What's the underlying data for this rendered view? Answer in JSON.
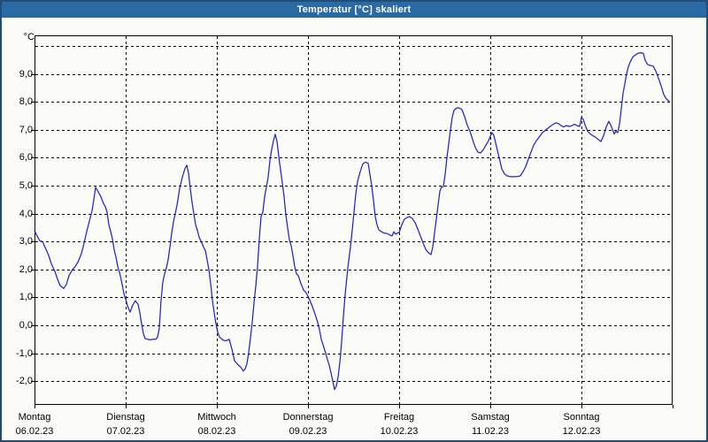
{
  "window": {
    "title": "Temperatur [°C] skaliert",
    "titlebar_color": "#2a69a2",
    "frame_color": "#1d4e79",
    "background_color": "#fbfcf7"
  },
  "chart_data": {
    "type": "line",
    "title": "Temperatur [°C] skaliert",
    "grid": {
      "style": "dashed",
      "color": "#000000",
      "visible": true
    },
    "legend": "none",
    "x_axis": {
      "unit": "days",
      "range_days": [
        0,
        7
      ],
      "gridlines_at_day_boundaries": true,
      "day_labels": [
        {
          "name": "Montag",
          "date": "06.02.23"
        },
        {
          "name": "Dienstag",
          "date": "07.02.23"
        },
        {
          "name": "Mittwoch",
          "date": "08.02.23"
        },
        {
          "name": "Donnerstag",
          "date": "09.02.23"
        },
        {
          "name": "Freitag",
          "date": "10.02.23"
        },
        {
          "name": "Samstag",
          "date": "11.02.23"
        },
        {
          "name": "Sonntag",
          "date": "12.02.23"
        }
      ]
    },
    "y_axis": {
      "unit_label": "°C",
      "min": -2.85,
      "max": 10.38,
      "gridline_values": [
        10,
        9,
        8,
        7,
        6,
        5,
        4,
        3,
        2,
        1,
        0,
        -1,
        -2
      ],
      "tick_labels": [
        {
          "value": 9,
          "label": "9,0"
        },
        {
          "value": 8,
          "label": "8,0"
        },
        {
          "value": 7,
          "label": "7,0"
        },
        {
          "value": 6,
          "label": "6,0"
        },
        {
          "value": 5,
          "label": "5,0"
        },
        {
          "value": 4,
          "label": "4,0"
        },
        {
          "value": 3,
          "label": "3,0"
        },
        {
          "value": 2,
          "label": "2,0"
        },
        {
          "value": 1,
          "label": "1,0"
        },
        {
          "value": 0,
          "label": "0,0"
        },
        {
          "value": -1,
          "label": "-1,0"
        },
        {
          "value": -2,
          "label": "-2,0"
        }
      ]
    },
    "series": [
      {
        "name": "Temperatur",
        "color": "#2323c8",
        "points": [
          [
            0.0,
            3.38
          ],
          [
            0.029,
            3.2
          ],
          [
            0.058,
            3.02
          ],
          [
            0.087,
            3.0
          ],
          [
            0.126,
            2.72
          ],
          [
            0.155,
            2.5
          ],
          [
            0.184,
            2.2
          ],
          [
            0.223,
            1.93
          ],
          [
            0.252,
            1.65
          ],
          [
            0.282,
            1.42
          ],
          [
            0.32,
            1.32
          ],
          [
            0.35,
            1.46
          ],
          [
            0.379,
            1.78
          ],
          [
            0.417,
            2.0
          ],
          [
            0.447,
            2.1
          ],
          [
            0.476,
            2.26
          ],
          [
            0.515,
            2.57
          ],
          [
            0.544,
            2.94
          ],
          [
            0.573,
            3.36
          ],
          [
            0.602,
            3.73
          ],
          [
            0.631,
            4.1
          ],
          [
            0.65,
            4.5
          ],
          [
            0.67,
            4.94
          ],
          [
            0.699,
            4.78
          ],
          [
            0.728,
            4.6
          ],
          [
            0.757,
            4.35
          ],
          [
            0.777,
            4.25
          ],
          [
            0.796,
            4.05
          ],
          [
            0.816,
            3.6
          ],
          [
            0.835,
            3.36
          ],
          [
            0.854,
            3.1
          ],
          [
            0.874,
            2.7
          ],
          [
            0.893,
            2.45
          ],
          [
            0.913,
            2.1
          ],
          [
            0.932,
            1.9
          ],
          [
            0.951,
            1.62
          ],
          [
            0.971,
            1.3
          ],
          [
            0.99,
            1.0
          ],
          [
            1.0,
            0.94
          ],
          [
            1.019,
            0.7
          ],
          [
            1.049,
            0.47
          ],
          [
            1.078,
            0.73
          ],
          [
            1.107,
            0.88
          ],
          [
            1.136,
            0.75
          ],
          [
            1.155,
            0.45
          ],
          [
            1.175,
            0.05
          ],
          [
            1.194,
            -0.3
          ],
          [
            1.214,
            -0.48
          ],
          [
            1.243,
            -0.5
          ],
          [
            1.272,
            -0.52
          ],
          [
            1.301,
            -0.5
          ],
          [
            1.33,
            -0.5
          ],
          [
            1.35,
            -0.42
          ],
          [
            1.369,
            -0.1
          ],
          [
            1.388,
            0.9
          ],
          [
            1.408,
            1.55
          ],
          [
            1.427,
            1.85
          ],
          [
            1.447,
            2.05
          ],
          [
            1.466,
            2.35
          ],
          [
            1.485,
            2.8
          ],
          [
            1.505,
            3.3
          ],
          [
            1.524,
            3.7
          ],
          [
            1.544,
            4.0
          ],
          [
            1.563,
            4.3
          ],
          [
            1.592,
            4.9
          ],
          [
            1.621,
            5.3
          ],
          [
            1.65,
            5.6
          ],
          [
            1.67,
            5.73
          ],
          [
            1.689,
            5.45
          ],
          [
            1.709,
            4.9
          ],
          [
            1.728,
            4.4
          ],
          [
            1.748,
            4.0
          ],
          [
            1.767,
            3.6
          ],
          [
            1.786,
            3.4
          ],
          [
            1.806,
            3.15
          ],
          [
            1.835,
            2.95
          ],
          [
            1.854,
            2.8
          ],
          [
            1.874,
            2.68
          ],
          [
            1.893,
            2.35
          ],
          [
            1.913,
            2.0
          ],
          [
            1.932,
            1.5
          ],
          [
            1.951,
            0.9
          ],
          [
            1.971,
            0.45
          ],
          [
            1.99,
            0.05
          ],
          [
            2.01,
            -0.25
          ],
          [
            2.029,
            -0.42
          ],
          [
            2.049,
            -0.48
          ],
          [
            2.078,
            -0.55
          ],
          [
            2.107,
            -0.55
          ],
          [
            2.136,
            -0.5
          ],
          [
            2.165,
            -0.85
          ],
          [
            2.194,
            -1.27
          ],
          [
            2.223,
            -1.38
          ],
          [
            2.243,
            -1.45
          ],
          [
            2.262,
            -1.5
          ],
          [
            2.291,
            -1.64
          ],
          [
            2.311,
            -1.56
          ],
          [
            2.33,
            -1.38
          ],
          [
            2.35,
            -0.95
          ],
          [
            2.369,
            -0.45
          ],
          [
            2.388,
            0.1
          ],
          [
            2.408,
            0.8
          ],
          [
            2.427,
            1.4
          ],
          [
            2.447,
            2.1
          ],
          [
            2.466,
            3.1
          ],
          [
            2.485,
            3.9
          ],
          [
            2.505,
            4.05
          ],
          [
            2.524,
            4.6
          ],
          [
            2.544,
            4.95
          ],
          [
            2.563,
            5.3
          ],
          [
            2.583,
            5.9
          ],
          [
            2.602,
            6.3
          ],
          [
            2.621,
            6.6
          ],
          [
            2.641,
            6.84
          ],
          [
            2.66,
            6.58
          ],
          [
            2.68,
            6.05
          ],
          [
            2.699,
            5.57
          ],
          [
            2.718,
            5.1
          ],
          [
            2.738,
            4.6
          ],
          [
            2.757,
            3.95
          ],
          [
            2.777,
            3.5
          ],
          [
            2.796,
            3.05
          ],
          [
            2.816,
            2.85
          ],
          [
            2.835,
            2.5
          ],
          [
            2.854,
            2.1
          ],
          [
            2.874,
            1.84
          ],
          [
            2.893,
            1.78
          ],
          [
            2.922,
            1.5
          ],
          [
            2.951,
            1.26
          ],
          [
            2.971,
            1.2
          ],
          [
            2.99,
            1.1
          ],
          [
            3.019,
            0.9
          ],
          [
            3.049,
            0.67
          ],
          [
            3.078,
            0.4
          ],
          [
            3.107,
            0.1
          ],
          [
            3.126,
            -0.16
          ],
          [
            3.146,
            -0.5
          ],
          [
            3.175,
            -0.8
          ],
          [
            3.194,
            -1.0
          ],
          [
            3.214,
            -1.23
          ],
          [
            3.233,
            -1.43
          ],
          [
            3.252,
            -1.7
          ],
          [
            3.272,
            -2.0
          ],
          [
            3.291,
            -2.3
          ],
          [
            3.311,
            -2.18
          ],
          [
            3.33,
            -1.86
          ],
          [
            3.35,
            -1.3
          ],
          [
            3.369,
            -0.6
          ],
          [
            3.388,
            0.3
          ],
          [
            3.408,
            1.1
          ],
          [
            3.437,
            2.05
          ],
          [
            3.466,
            2.8
          ],
          [
            3.485,
            3.4
          ],
          [
            3.505,
            4.05
          ],
          [
            3.524,
            4.7
          ],
          [
            3.544,
            5.15
          ],
          [
            3.573,
            5.5
          ],
          [
            3.602,
            5.78
          ],
          [
            3.631,
            5.84
          ],
          [
            3.66,
            5.8
          ],
          [
            3.68,
            5.4
          ],
          [
            3.699,
            5.0
          ],
          [
            3.718,
            4.47
          ],
          [
            3.738,
            3.9
          ],
          [
            3.757,
            3.6
          ],
          [
            3.777,
            3.42
          ],
          [
            3.806,
            3.35
          ],
          [
            3.835,
            3.3
          ],
          [
            3.864,
            3.29
          ],
          [
            3.893,
            3.24
          ],
          [
            3.922,
            3.2
          ],
          [
            3.942,
            3.35
          ],
          [
            3.961,
            3.26
          ],
          [
            3.981,
            3.3
          ],
          [
            4.0,
            3.32
          ],
          [
            4.029,
            3.6
          ],
          [
            4.058,
            3.8
          ],
          [
            4.087,
            3.86
          ],
          [
            4.117,
            3.89
          ],
          [
            4.146,
            3.82
          ],
          [
            4.175,
            3.68
          ],
          [
            4.204,
            3.45
          ],
          [
            4.233,
            3.2
          ],
          [
            4.262,
            2.95
          ],
          [
            4.291,
            2.72
          ],
          [
            4.32,
            2.6
          ],
          [
            4.35,
            2.53
          ],
          [
            4.369,
            2.8
          ],
          [
            4.388,
            3.3
          ],
          [
            4.408,
            3.8
          ],
          [
            4.427,
            4.3
          ],
          [
            4.447,
            4.8
          ],
          [
            4.466,
            4.95
          ],
          [
            4.485,
            4.97
          ],
          [
            4.505,
            5.4
          ],
          [
            4.524,
            6.0
          ],
          [
            4.544,
            6.5
          ],
          [
            4.563,
            7.0
          ],
          [
            4.583,
            7.45
          ],
          [
            4.602,
            7.7
          ],
          [
            4.631,
            7.78
          ],
          [
            4.66,
            7.78
          ],
          [
            4.689,
            7.72
          ],
          [
            4.718,
            7.47
          ],
          [
            4.748,
            7.16
          ],
          [
            4.777,
            6.95
          ],
          [
            4.806,
            6.65
          ],
          [
            4.835,
            6.37
          ],
          [
            4.864,
            6.2
          ],
          [
            4.893,
            6.17
          ],
          [
            4.922,
            6.28
          ],
          [
            4.951,
            6.45
          ],
          [
            4.981,
            6.6
          ],
          [
            5.0,
            6.77
          ],
          [
            5.019,
            6.9
          ],
          [
            5.039,
            6.8
          ],
          [
            5.068,
            6.4
          ],
          [
            5.097,
            6.0
          ],
          [
            5.126,
            5.6
          ],
          [
            5.155,
            5.42
          ],
          [
            5.184,
            5.35
          ],
          [
            5.223,
            5.32
          ],
          [
            5.262,
            5.32
          ],
          [
            5.301,
            5.33
          ],
          [
            5.33,
            5.35
          ],
          [
            5.359,
            5.5
          ],
          [
            5.388,
            5.68
          ],
          [
            5.417,
            5.95
          ],
          [
            5.447,
            6.2
          ],
          [
            5.476,
            6.45
          ],
          [
            5.505,
            6.6
          ],
          [
            5.534,
            6.73
          ],
          [
            5.573,
            6.9
          ],
          [
            5.612,
            7.0
          ],
          [
            5.641,
            7.08
          ],
          [
            5.68,
            7.17
          ],
          [
            5.718,
            7.25
          ],
          [
            5.748,
            7.22
          ],
          [
            5.777,
            7.15
          ],
          [
            5.806,
            7.1
          ],
          [
            5.835,
            7.15
          ],
          [
            5.864,
            7.12
          ],
          [
            5.893,
            7.14
          ],
          [
            5.922,
            7.2
          ],
          [
            5.951,
            7.15
          ],
          [
            5.981,
            7.12
          ],
          [
            6.0,
            7.45
          ],
          [
            6.019,
            7.37
          ],
          [
            6.039,
            7.18
          ],
          [
            6.068,
            6.95
          ],
          [
            6.097,
            6.85
          ],
          [
            6.126,
            6.78
          ],
          [
            6.155,
            6.73
          ],
          [
            6.184,
            6.65
          ],
          [
            6.214,
            6.58
          ],
          [
            6.243,
            6.78
          ],
          [
            6.272,
            7.1
          ],
          [
            6.301,
            7.3
          ],
          [
            6.33,
            7.1
          ],
          [
            6.359,
            6.85
          ],
          [
            6.379,
            6.95
          ],
          [
            6.398,
            6.9
          ],
          [
            6.417,
            7.2
          ],
          [
            6.437,
            7.74
          ],
          [
            6.456,
            8.3
          ],
          [
            6.476,
            8.65
          ],
          [
            6.495,
            9.0
          ],
          [
            6.515,
            9.26
          ],
          [
            6.534,
            9.42
          ],
          [
            6.563,
            9.6
          ],
          [
            6.592,
            9.68
          ],
          [
            6.621,
            9.74
          ],
          [
            6.65,
            9.76
          ],
          [
            6.68,
            9.73
          ],
          [
            6.699,
            9.48
          ],
          [
            6.728,
            9.33
          ],
          [
            6.757,
            9.3
          ],
          [
            6.786,
            9.28
          ],
          [
            6.816,
            9.1
          ],
          [
            6.845,
            8.85
          ],
          [
            6.874,
            8.58
          ],
          [
            6.903,
            8.26
          ],
          [
            6.932,
            8.1
          ],
          [
            6.961,
            8.03
          ]
        ]
      }
    ]
  }
}
